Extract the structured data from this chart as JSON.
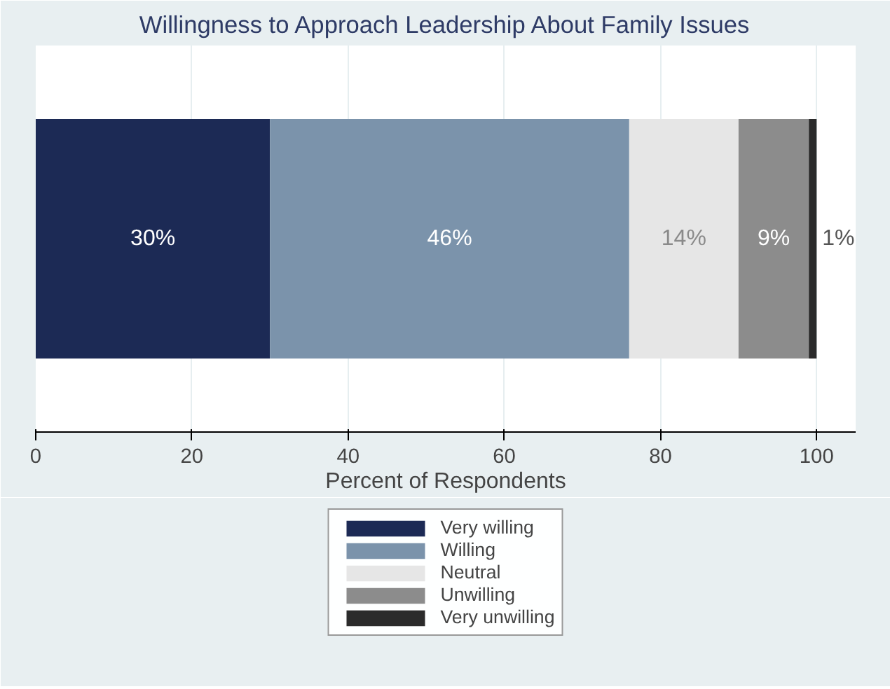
{
  "chart_data": {
    "type": "bar",
    "orientation": "horizontal",
    "stacked": true,
    "title": "Willingness to Approach Leadership About Family Issues",
    "xlabel": "Percent of Respondents",
    "categories": [
      null
    ],
    "xlim": [
      0,
      100
    ],
    "xticks": [
      0,
      20,
      40,
      60,
      80,
      100
    ],
    "grid": "x",
    "legend": "bottom",
    "series": [
      {
        "name": "Very willing",
        "color": "#1c2a55",
        "values": [
          30
        ],
        "value_labels": [
          "30%"
        ]
      },
      {
        "name": "Willing",
        "color": "#7b93ab",
        "values": [
          46
        ],
        "value_labels": [
          "46%"
        ]
      },
      {
        "name": "Neutral",
        "color": "#e6e6e6",
        "values": [
          14
        ],
        "value_labels": [
          "14%"
        ]
      },
      {
        "name": "Unwilling",
        "color": "#8c8c8c",
        "values": [
          9
        ],
        "value_labels": [
          "9%"
        ]
      },
      {
        "name": "Very unwilling",
        "color": "#2b2b2b",
        "values": [
          1
        ],
        "value_labels": [
          "1%"
        ]
      }
    ]
  }
}
